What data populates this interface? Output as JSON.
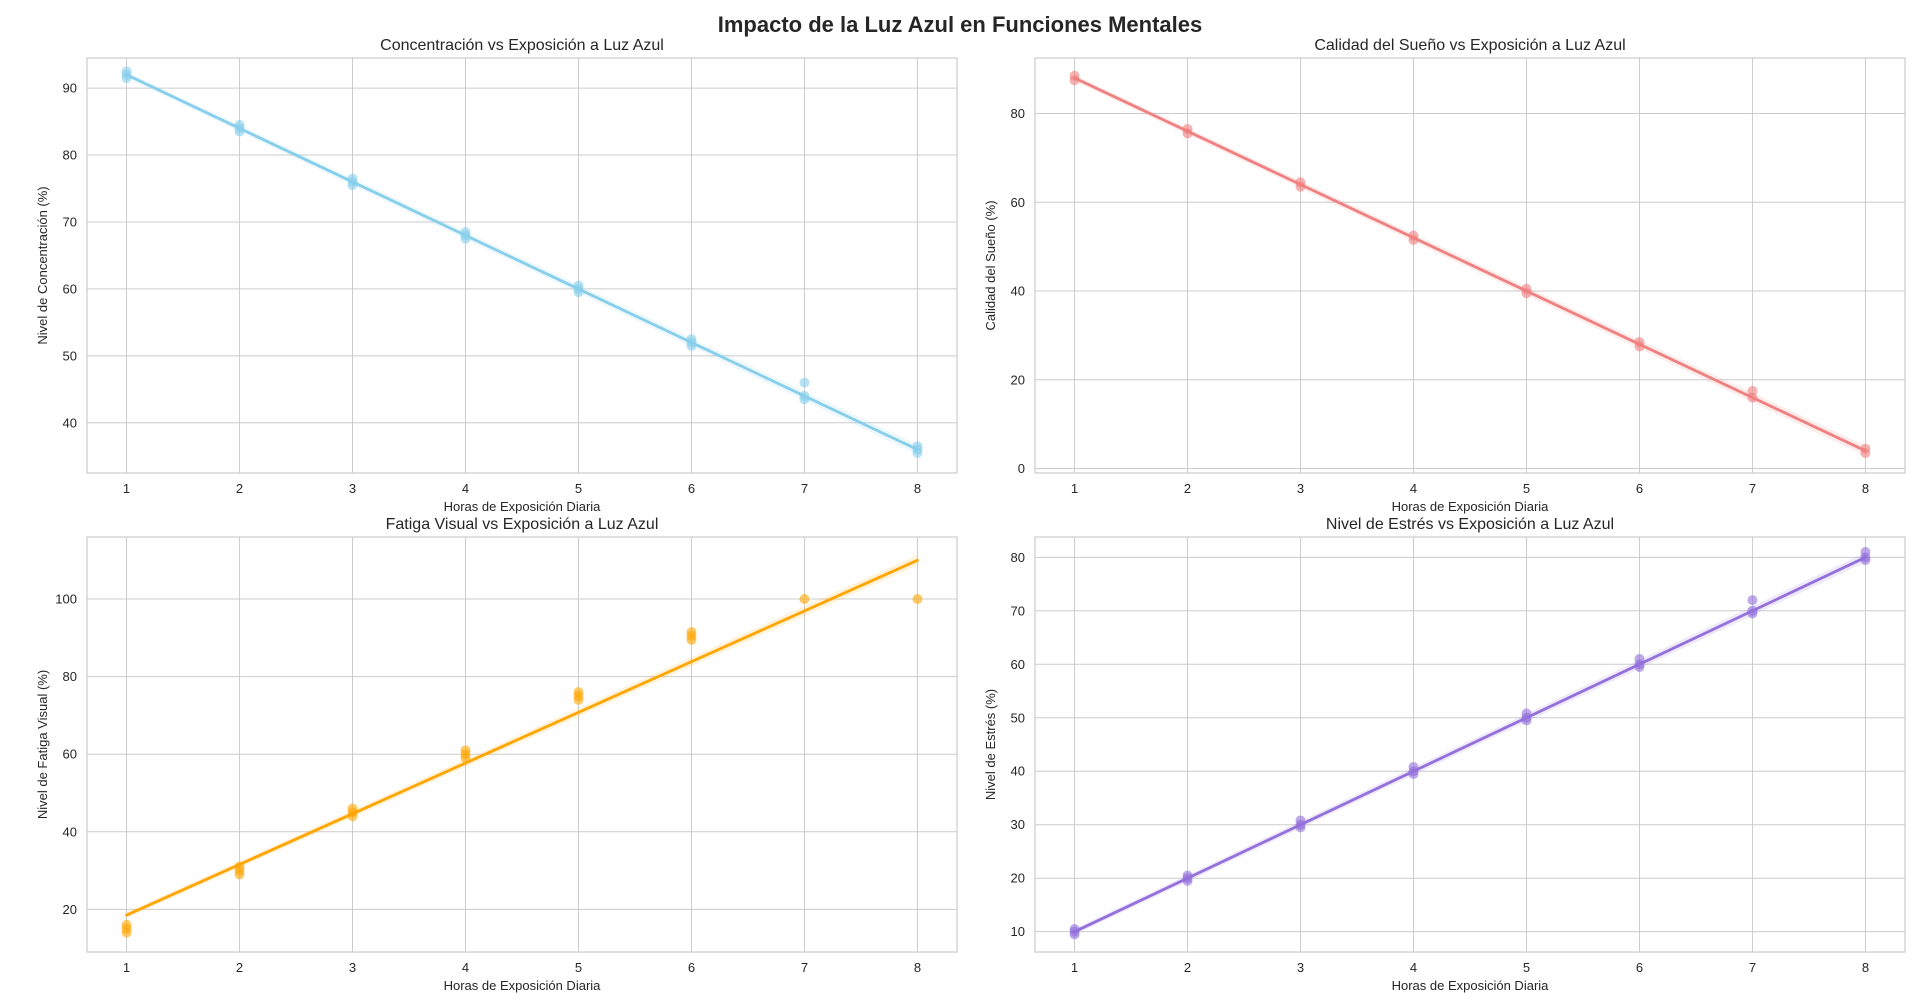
{
  "figure": {
    "title": "Impacto de la Luz Azul en Funciones Mentales"
  },
  "chart_data": [
    {
      "type": "scatter",
      "title": "Concentración vs Exposición a Luz Azul",
      "xlabel": "Horas de Exposición Diaria",
      "ylabel": "Nivel de Concentración (%)",
      "color": "#87CEEB",
      "xlim": [
        0.65,
        8.35
      ],
      "ylim": [
        32.5,
        94.5
      ],
      "xticks": [
        1,
        2,
        3,
        4,
        5,
        6,
        7,
        8
      ],
      "yticks": [
        40,
        50,
        60,
        70,
        80,
        90
      ],
      "grid": true,
      "points": {
        "x": [
          1,
          1,
          1,
          2,
          2,
          2,
          3,
          3,
          3,
          4,
          4,
          4,
          5,
          5,
          5,
          6,
          6,
          6,
          7,
          7,
          7,
          8,
          8,
          8
        ],
        "y": [
          91.5,
          92,
          92.5,
          83.5,
          84,
          84.5,
          75.5,
          76,
          76.5,
          67.5,
          68,
          68.5,
          59.5,
          60,
          60.5,
          51.5,
          52,
          52.5,
          43.5,
          44,
          46,
          35.5,
          36,
          36.5
        ]
      },
      "fit": {
        "x": [
          1,
          8
        ],
        "y": [
          92,
          36
        ]
      }
    },
    {
      "type": "scatter",
      "title": "Calidad del Sueño vs Exposición a Luz Azul",
      "xlabel": "Horas de Exposición Diaria",
      "ylabel": "Calidad del Sueño (%)",
      "color": "#F08080",
      "xlim": [
        0.65,
        8.35
      ],
      "ylim": [
        -1,
        92.5
      ],
      "xticks": [
        1,
        2,
        3,
        4,
        5,
        6,
        7,
        8
      ],
      "yticks": [
        0,
        20,
        40,
        60,
        80
      ],
      "grid": true,
      "points": {
        "x": [
          1,
          1,
          2,
          2,
          3,
          3,
          4,
          4,
          5,
          5,
          6,
          6,
          7,
          7,
          8,
          8
        ],
        "y": [
          87.5,
          88.5,
          75.5,
          76.5,
          63.5,
          64.5,
          51.5,
          52.5,
          39.5,
          40.5,
          27.5,
          28.5,
          16,
          17.5,
          3.5,
          4.5
        ]
      },
      "fit": {
        "x": [
          1,
          8
        ],
        "y": [
          88,
          4
        ]
      }
    },
    {
      "type": "scatter",
      "title": "Fatiga Visual vs Exposición a Luz Azul",
      "xlabel": "Horas de Exposición Diaria",
      "ylabel": "Nivel de Fatiga Visual (%)",
      "color": "#FFA500",
      "xlim": [
        0.65,
        8.35
      ],
      "ylim": [
        9,
        116
      ],
      "xticks": [
        1,
        2,
        3,
        4,
        5,
        6,
        7,
        8
      ],
      "yticks": [
        20,
        40,
        60,
        80,
        100
      ],
      "grid": true,
      "points": {
        "x": [
          1,
          1,
          1,
          2,
          2,
          2,
          3,
          3,
          3,
          4,
          4,
          4,
          5,
          5,
          5,
          6,
          6,
          6,
          7,
          8
        ],
        "y": [
          14,
          15,
          16,
          29,
          30,
          31,
          44,
          45,
          46,
          59,
          60,
          61,
          74,
          75,
          76,
          89.5,
          90.5,
          91.5,
          100,
          100
        ]
      },
      "fit": {
        "x": [
          1,
          8
        ],
        "y": [
          18.5,
          110
        ]
      }
    },
    {
      "type": "scatter",
      "title": "Nivel de Estrés vs Exposición a Luz Azul",
      "xlabel": "Horas de Exposición Diaria",
      "ylabel": "Nivel de Estrés (%)",
      "color": "#9370DB",
      "xlim": [
        0.65,
        8.35
      ],
      "ylim": [
        6.2,
        83.8
      ],
      "xticks": [
        1,
        2,
        3,
        4,
        5,
        6,
        7,
        8
      ],
      "yticks": [
        10,
        20,
        30,
        40,
        50,
        60,
        70,
        80
      ],
      "grid": true,
      "points": {
        "x": [
          1,
          1,
          1,
          2,
          2,
          2,
          3,
          3,
          3,
          4,
          4,
          4,
          5,
          5,
          5,
          6,
          6,
          6,
          7,
          7,
          7,
          8,
          8,
          8
        ],
        "y": [
          9.5,
          10,
          10.5,
          19.5,
          20,
          20.5,
          29.5,
          30,
          30.8,
          39.5,
          40,
          40.8,
          49.5,
          50,
          50.8,
          59.5,
          60,
          61,
          69.5,
          70,
          72,
          79.5,
          80,
          81
        ]
      },
      "fit": {
        "x": [
          1,
          8
        ],
        "y": [
          10,
          80
        ]
      }
    }
  ]
}
